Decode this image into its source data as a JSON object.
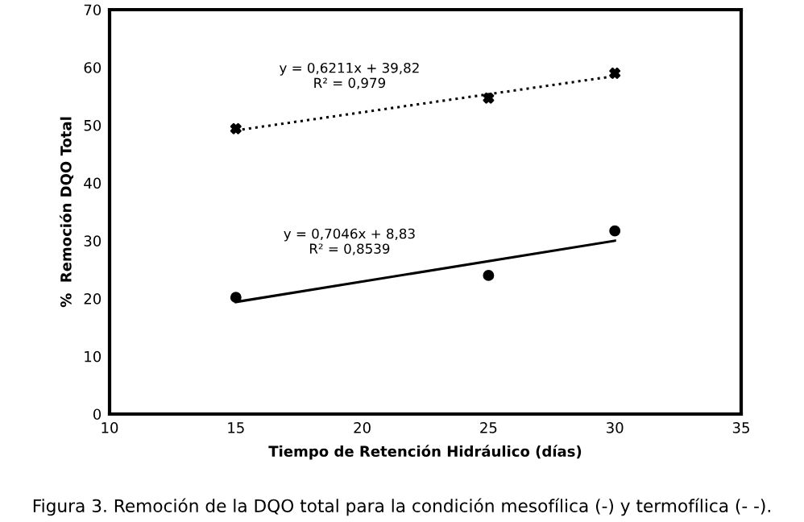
{
  "chart_data": {
    "type": "scatter",
    "xlabel": "Tiempo de Retención Hidráulico (días)",
    "ylabel": "%  Remoción DQO Total",
    "series": [
      {
        "x": [
          15,
          25,
          30
        ],
        "values": [
          49.4,
          54.7,
          59.0
        ],
        "color": "#000000",
        "marker": "cross"
      },
      {
        "type": "line",
        "x": [
          15,
          30
        ],
        "values": [
          49.1,
          58.5
        ],
        "color": "#000000",
        "line_style": "dotted",
        "marker": "none"
      },
      {
        "x": [
          15,
          25,
          30
        ],
        "values": [
          20.2,
          24.0,
          31.7
        ],
        "color": "#000000",
        "marker": "circle"
      },
      {
        "type": "line",
        "x": [
          15,
          30
        ],
        "values": [
          19.4,
          30.0
        ],
        "color": "#000000",
        "line_style": "solid",
        "marker": "none"
      }
    ],
    "annotations": [
      "y = 0,6211x + 39,82\nR² = 0,979",
      "y = 0,7046x + 8,83\nR² = 0,8539",
      "Figura 3. Remoción de la DQO total para la condición mesofílica (-) y termofílica (- -)."
    ],
    "xlim": [
      10,
      35
    ],
    "xticks": [
      10,
      15,
      20,
      25,
      30,
      35
    ],
    "ylim": [
      0,
      70
    ],
    "yticks": [
      0,
      10,
      20,
      30,
      40,
      50,
      60,
      70
    ],
    "grid": false,
    "legend": false
  }
}
